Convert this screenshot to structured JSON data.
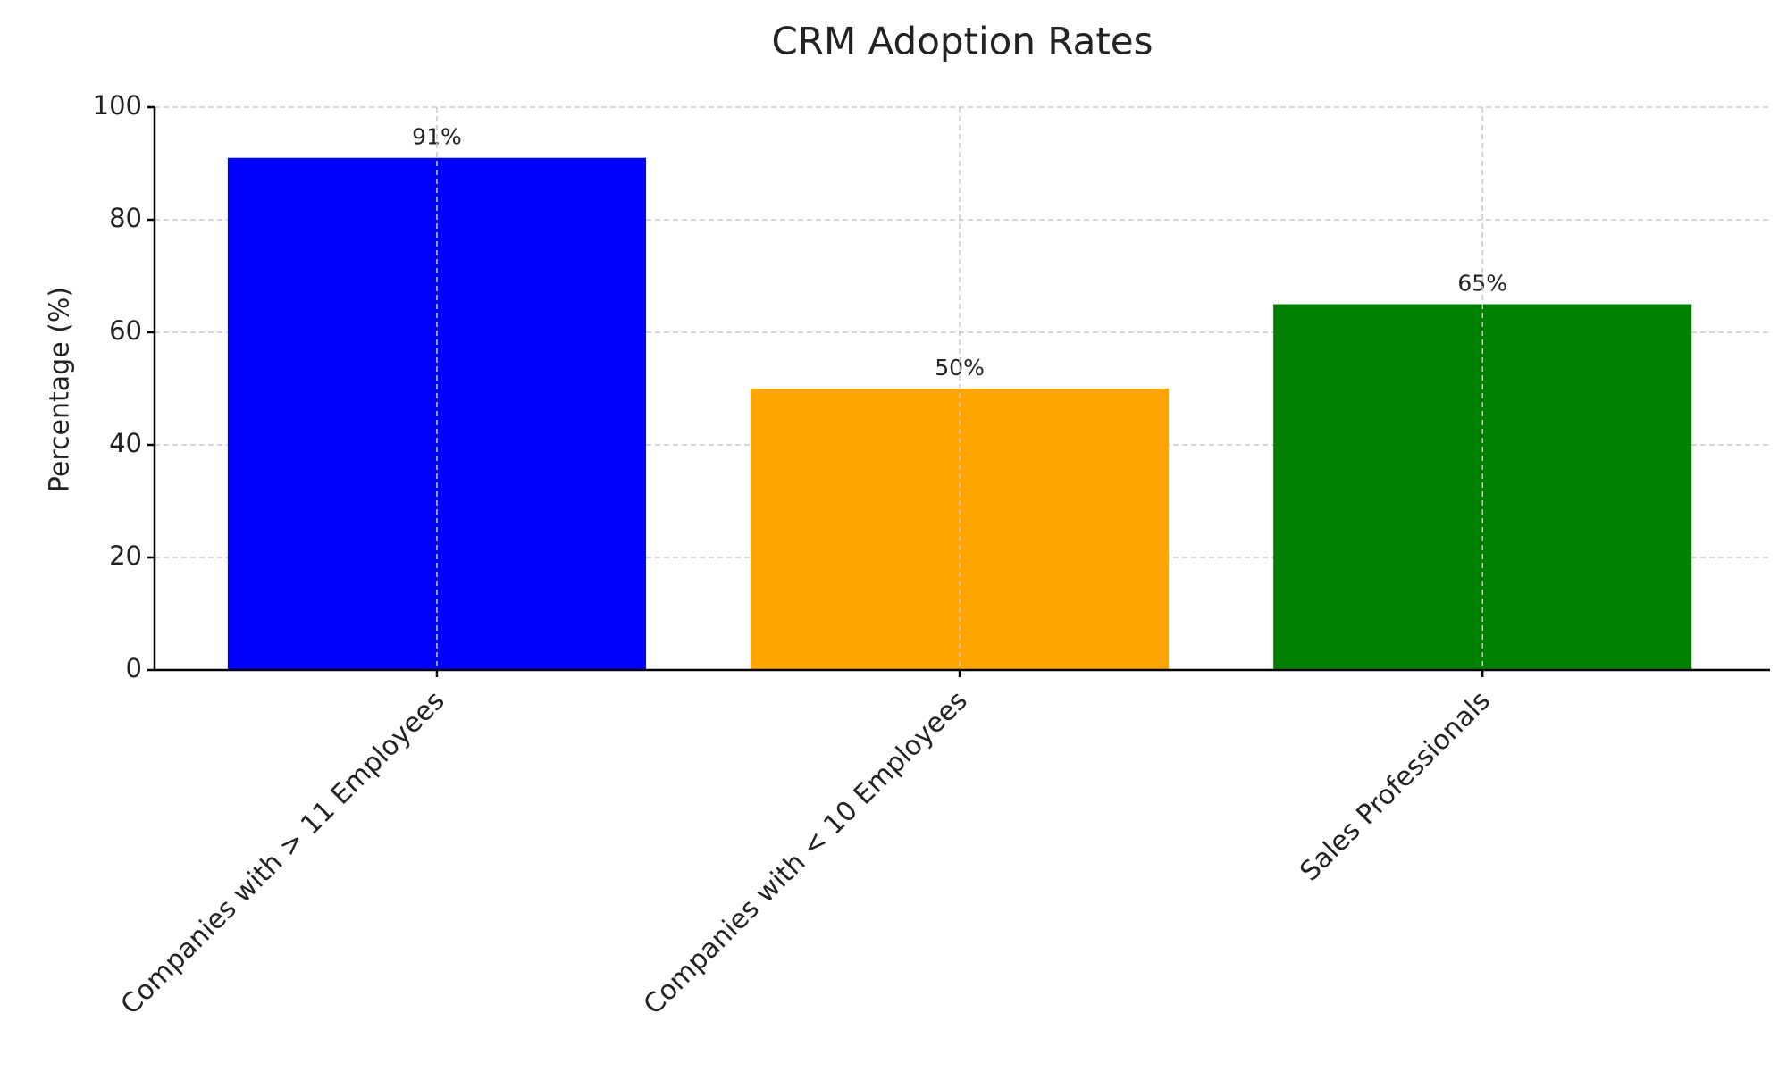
{
  "chart_data": {
    "type": "bar",
    "title": "CRM Adoption Rates",
    "y_label": "Percentage (%)",
    "categories": [
      "Companies with > 11 Employees",
      "Companies with < 10 Employees",
      "Sales Professionals"
    ],
    "values": [
      91,
      50,
      65
    ],
    "value_labels": [
      "91%",
      "50%",
      "65%"
    ],
    "colors": [
      "#0000ff",
      "#ffa500",
      "#008000"
    ],
    "ylim": [
      0,
      100
    ],
    "yticks": [
      0,
      20,
      40,
      60,
      80,
      100
    ],
    "grid": true
  }
}
